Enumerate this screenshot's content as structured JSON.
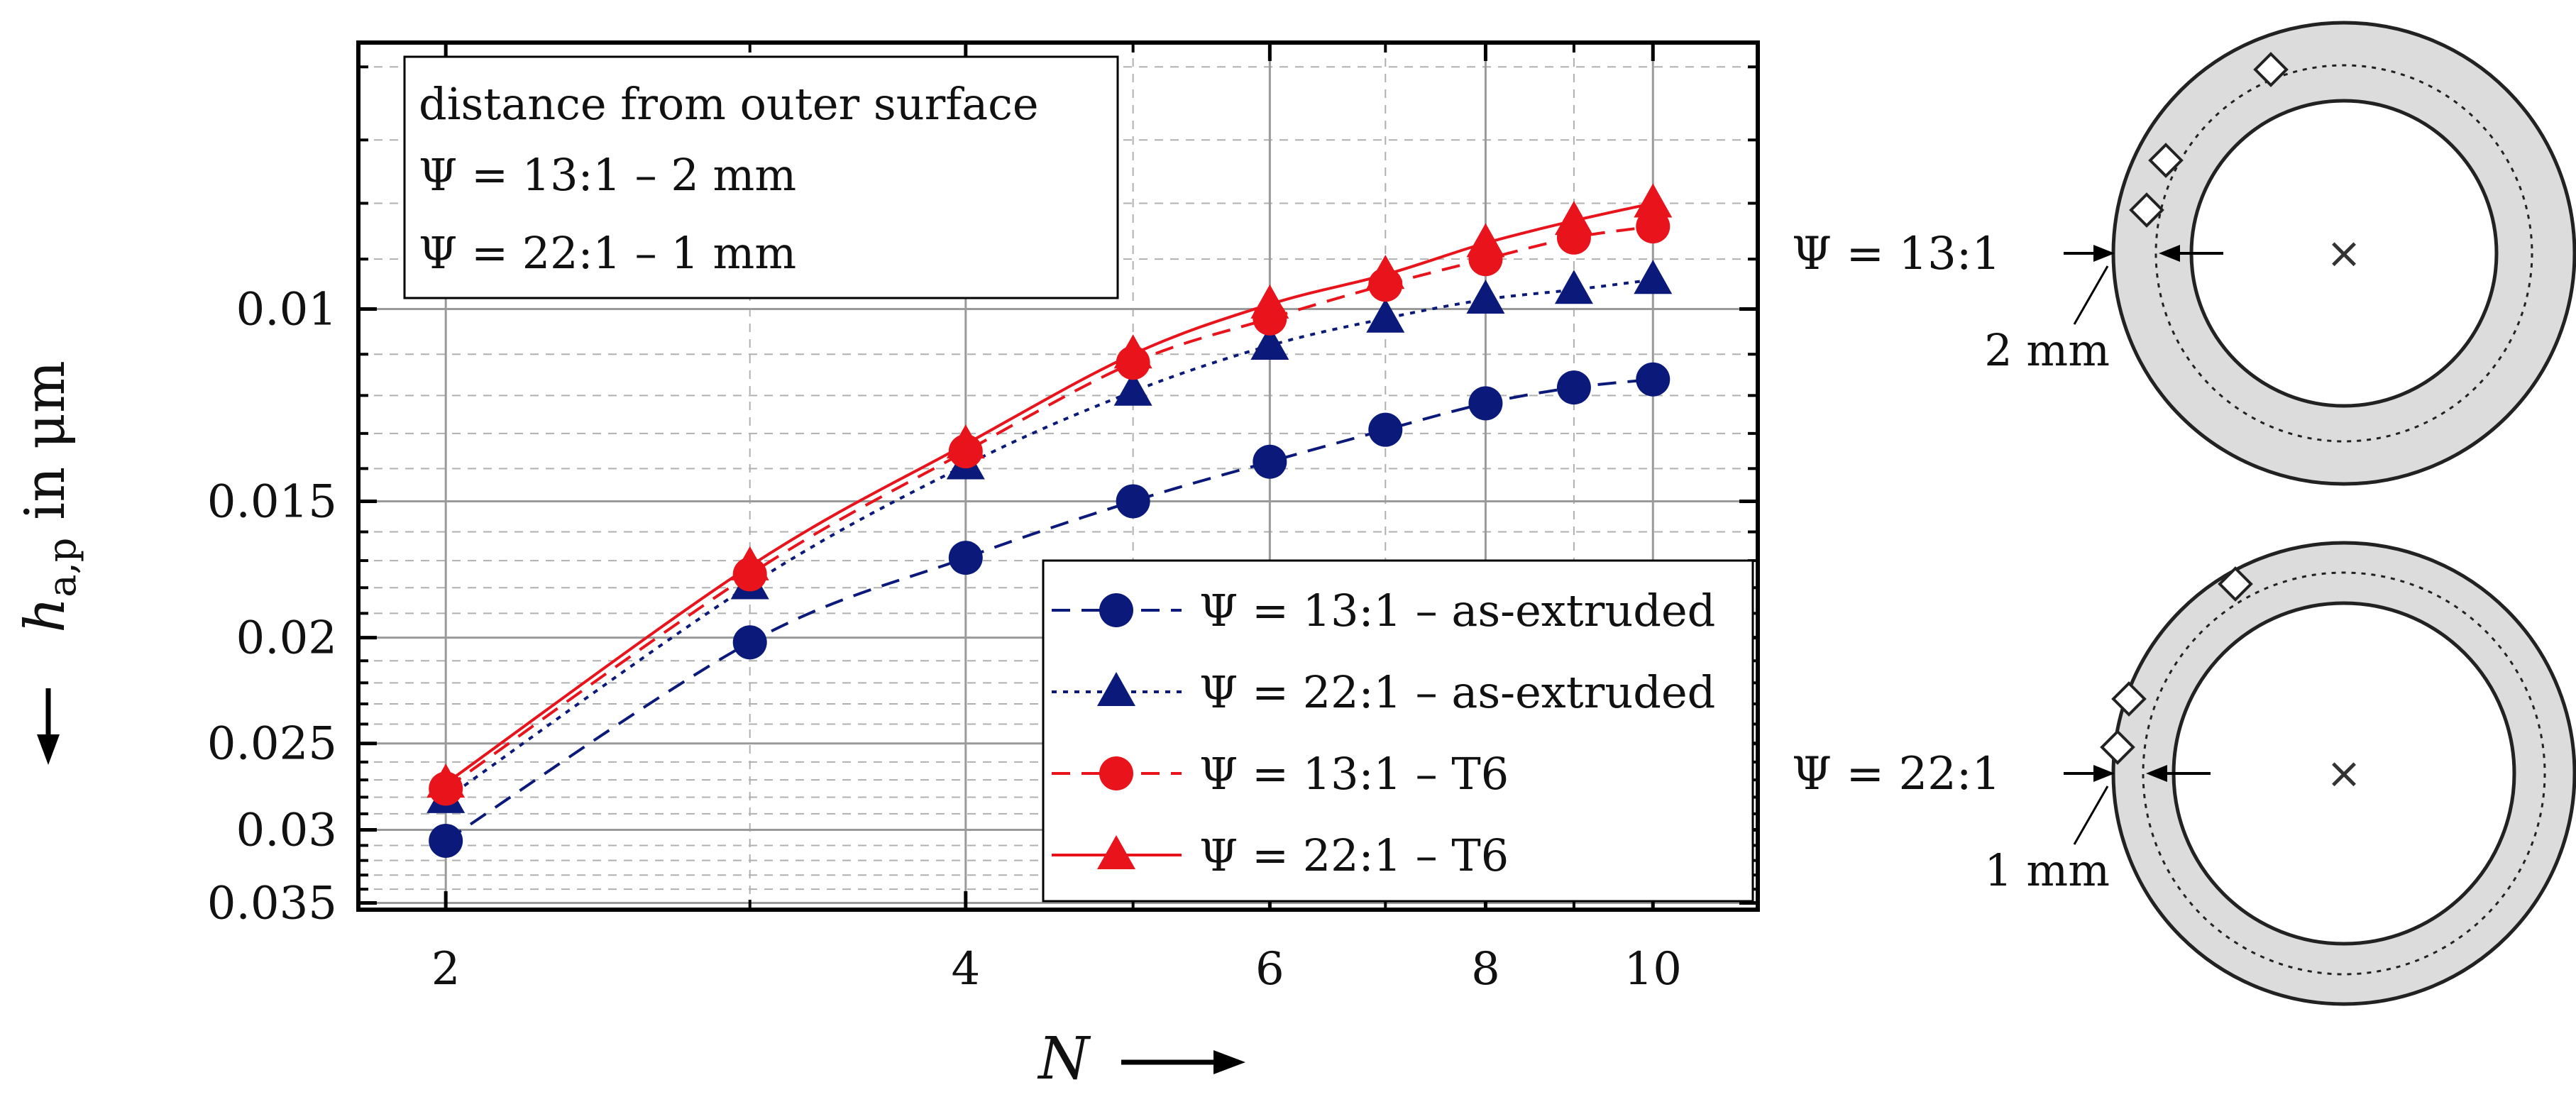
{
  "chart_data": {
    "type": "line",
    "xscale": "log",
    "yscale": "log",
    "yreversed": true,
    "xlabel": "N",
    "ylabel": "h_a,p in μm",
    "ylabel_parts": {
      "symbol": "h",
      "sub": "a,p",
      "unit": " in μm"
    },
    "xlim": [
      1.78,
      11.5
    ],
    "ylim": [
      0.0057,
      0.0355
    ],
    "xticks": [
      {
        "value": 2,
        "label": "2"
      },
      {
        "value": 4,
        "label": "4"
      },
      {
        "value": 6,
        "label": "6"
      },
      {
        "value": 8,
        "label": "8"
      },
      {
        "value": 10,
        "label": "10"
      }
    ],
    "yticks": [
      {
        "value": 0.01,
        "label": "0.01"
      },
      {
        "value": 0.015,
        "label": "0.015"
      },
      {
        "value": 0.02,
        "label": "0.02"
      },
      {
        "value": 0.025,
        "label": "0.025"
      },
      {
        "value": 0.03,
        "label": "0.03"
      },
      {
        "value": 0.035,
        "label": "0.035"
      }
    ],
    "x_minor_grid": [
      3,
      5,
      7,
      9
    ],
    "y_minor_grid": [
      0.006,
      0.007,
      0.008,
      0.009,
      0.011,
      0.012,
      0.013,
      0.014,
      0.016,
      0.017,
      0.018,
      0.019,
      0.021,
      0.022,
      0.023,
      0.024,
      0.026,
      0.027,
      0.028,
      0.029,
      0.031,
      0.032,
      0.033,
      0.034
    ],
    "grid": true,
    "legend_position": "bottom-right",
    "annotation": {
      "lines": [
        "distance from outer surface",
        "Ψ = 13:1 – 2 mm",
        "Ψ = 22:1 – 1 mm"
      ],
      "position": "top-left"
    },
    "series": [
      {
        "name": "Ψ = 13:1 – as-extruded",
        "color": "#0b1a7a",
        "marker": "circle",
        "dash": "dashed",
        "x": [
          2,
          3,
          4,
          5,
          6,
          7,
          8,
          9,
          10
        ],
        "y": [
          0.0307,
          0.0202,
          0.0169,
          0.015,
          0.0138,
          0.0129,
          0.0122,
          0.0118,
          0.0116
        ]
      },
      {
        "name": "Ψ = 22:1 – as-extruded",
        "color": "#0b1a7a",
        "marker": "triangle",
        "dash": "dotted",
        "x": [
          2,
          3,
          4,
          5,
          6,
          7,
          8,
          9,
          10
        ],
        "y": [
          0.0281,
          0.0179,
          0.0139,
          0.0119,
          0.0108,
          0.0102,
          0.0098,
          0.0096,
          0.0094
        ]
      },
      {
        "name": "Ψ = 13:1 – T6",
        "color": "#e8131b",
        "marker": "circle",
        "dash": "dashed",
        "x": [
          2,
          3,
          4,
          5,
          6,
          7,
          8,
          9,
          10
        ],
        "y": [
          0.0275,
          0.0175,
          0.0135,
          0.0112,
          0.0102,
          0.0095,
          0.009,
          0.0086,
          0.0084
        ]
      },
      {
        "name": "Ψ = 22:1 – T6",
        "color": "#e8131b",
        "marker": "triangle",
        "dash": "solid",
        "x": [
          2,
          3,
          4,
          5,
          6,
          7,
          8,
          9,
          10
        ],
        "y": [
          0.0272,
          0.0172,
          0.0133,
          0.011,
          0.0099,
          0.0093,
          0.0087,
          0.0083,
          0.008
        ]
      }
    ]
  },
  "diagrams": [
    {
      "label": "Ψ = 13:1",
      "depth_label": "2 mm",
      "center_mark": "×"
    },
    {
      "label": "Ψ = 22:1",
      "depth_label": "1 mm",
      "center_mark": "×"
    }
  ]
}
